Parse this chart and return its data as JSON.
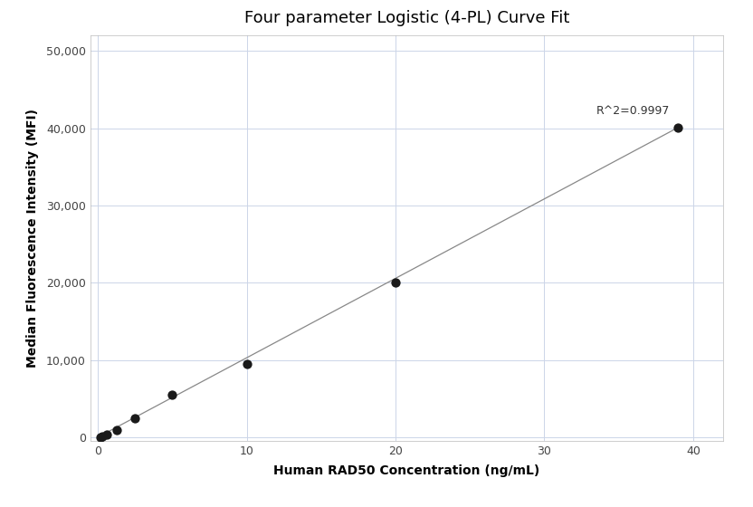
{
  "title": "Four parameter Logistic (4-PL) Curve Fit",
  "xlabel": "Human RAD50 Concentration (ng/mL)",
  "ylabel": "Median Fluorescence Intensity (MFI)",
  "scatter_x": [
    0.156,
    0.313,
    0.625,
    1.25,
    2.5,
    5.0,
    10.0,
    20.0,
    39.0
  ],
  "scatter_y": [
    50,
    150,
    400,
    900,
    2500,
    5500,
    9500,
    20000,
    40100
  ],
  "line_x": [
    0.0,
    39.0
  ],
  "line_y": [
    0.0,
    40100
  ],
  "xlim": [
    -0.5,
    42
  ],
  "ylim": [
    -500,
    52000
  ],
  "xticks": [
    0,
    10,
    20,
    30,
    40
  ],
  "yticks": [
    0,
    10000,
    20000,
    30000,
    40000,
    50000
  ],
  "ytick_labels": [
    "0",
    "10,000",
    "20,000",
    "30,000",
    "40,000",
    "50,000"
  ],
  "r2_text": "R^2=0.9997",
  "r2_x": 33.5,
  "r2_y": 41500,
  "dot_color": "#1a1a1a",
  "line_color": "#888888",
  "grid_color": "#ccd5e8",
  "background_color": "#ffffff",
  "title_fontsize": 13,
  "axis_label_fontsize": 10,
  "tick_fontsize": 9,
  "annotation_fontsize": 9,
  "dot_size": 55
}
